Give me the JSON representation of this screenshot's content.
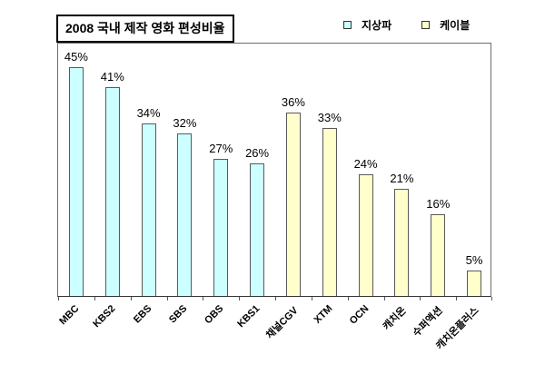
{
  "chart_data": {
    "type": "bar",
    "title": "2008 국내 제작 영화 편성비율",
    "categories": [
      "MBC",
      "KBS2",
      "EBS",
      "SBS",
      "OBS",
      "KBS1",
      "채널CGV",
      "XTM",
      "OCN",
      "캐치온",
      "수퍼액션",
      "캐치온플러스"
    ],
    "values": [
      45,
      41,
      34,
      32,
      27,
      26,
      36,
      33,
      24,
      21,
      16,
      5
    ],
    "value_labels": [
      "45%",
      "41%",
      "34%",
      "32%",
      "27%",
      "26%",
      "36%",
      "33%",
      "24%",
      "21%",
      "16%",
      "5%"
    ],
    "bar_groups": [
      "terrestrial",
      "terrestrial",
      "terrestrial",
      "terrestrial",
      "terrestrial",
      "terrestrial",
      "cable",
      "cable",
      "cable",
      "cable",
      "cable",
      "cable"
    ],
    "legend": [
      {
        "key": "terrestrial",
        "label": "지상파",
        "color": "#CCFFFF"
      },
      {
        "key": "cable",
        "label": "케이블",
        "color": "#FFFFCC"
      }
    ],
    "legend_position": "top-right",
    "xlabel": "",
    "ylabel": "",
    "ylim": [
      0,
      50
    ],
    "yticks_shown": false,
    "grid": false,
    "x_label_rotation_deg": 45,
    "bar_border_color": "#595959",
    "axis_color": "#6e6e6e",
    "background_color": "#FFFFFF"
  }
}
